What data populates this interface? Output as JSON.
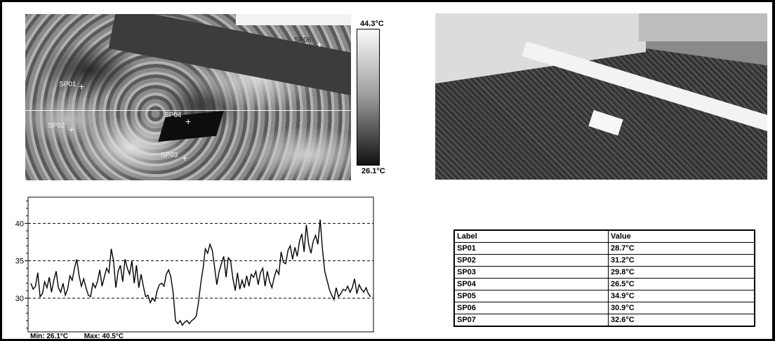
{
  "thermal": {
    "scale_max": "44.3°C",
    "scale_min": "26.1°C",
    "spots": [
      {
        "label": "SP01"
      },
      {
        "label": "SP02"
      },
      {
        "label": "SP03"
      },
      {
        "label": "SP04"
      },
      {
        "label": "SP06"
      }
    ]
  },
  "chart_data": {
    "type": "line",
    "title": "",
    "xlabel": "",
    "ylabel": "",
    "y_ticks": [
      "40",
      "35",
      "30"
    ],
    "ylim": [
      25.5,
      43.5
    ],
    "grid": "dashed horizontal at 30, 35, 40",
    "min_label": "Min: 26.1°C",
    "max_label": "Max: 40.5°C",
    "values": [
      32,
      31.2,
      31.6,
      33.4,
      30.2,
      30.6,
      32.2,
      31.4,
      32.8,
      30.8,
      32.4,
      33.6,
      31.4,
      30.8,
      32,
      30.4,
      31.2,
      33,
      32.4,
      34,
      35.2,
      33,
      31.6,
      32.6,
      31.4,
      30.4,
      30.2,
      32,
      31.4,
      32.2,
      33.8,
      31.6,
      32.8,
      34,
      33.4,
      36.6,
      35,
      31.4,
      33.6,
      34.4,
      32.2,
      35.2,
      34,
      33.2,
      35,
      32,
      34.4,
      31.4,
      33.2,
      31.6,
      30.2,
      30.4,
      29.4,
      30,
      29.6,
      31,
      31.8,
      32,
      31.6,
      33.2,
      33.8,
      32.8,
      30.6,
      27,
      26.6,
      27,
      26.4,
      26.8,
      27,
      26.6,
      27,
      27.2,
      27.6,
      29.4,
      32,
      34,
      36.6,
      36,
      37.2,
      36.4,
      34.2,
      31.8,
      33.6,
      34.6,
      35.6,
      32.8,
      35.4,
      35,
      32.6,
      31,
      33.4,
      31.2,
      32.4,
      31.4,
      33,
      31.6,
      33.2,
      32.8,
      33.6,
      31.8,
      33.4,
      34,
      31.6,
      33.6,
      32.2,
      31.4,
      32.8,
      33.8,
      33.2,
      36.2,
      34.8,
      34.6,
      36.4,
      37,
      35.2,
      36.8,
      35.6,
      37.6,
      38.6,
      36.2,
      39.8,
      37.2,
      36,
      37.6,
      38.4,
      37.2,
      40.5,
      36.6,
      33.6,
      32.4,
      31.2,
      30.4,
      29.8,
      31.4,
      30.2,
      30.6,
      31.2,
      31,
      31.6,
      30.8,
      31.4,
      32.6,
      30.6,
      31.8,
      31.2,
      30.8,
      31.4,
      30.6,
      30.2
    ]
  },
  "table": {
    "headers": [
      "Label",
      "Value"
    ],
    "rows": [
      [
        "SP01",
        "28.7°C"
      ],
      [
        "SP02",
        "31.2°C"
      ],
      [
        "SP03",
        "29.8°C"
      ],
      [
        "SP04",
        "26.5°C"
      ],
      [
        "SP05",
        "34.9°C"
      ],
      [
        "SP06",
        "30.9°C"
      ],
      [
        "SP07",
        "32.6°C"
      ]
    ]
  }
}
